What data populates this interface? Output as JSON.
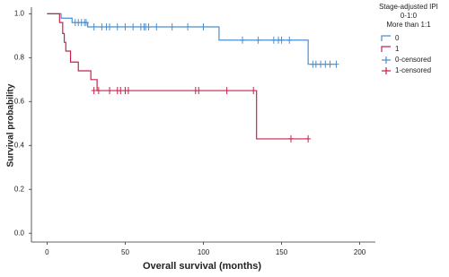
{
  "chart_data": {
    "type": "step",
    "xlabel": "Overall survival (months)",
    "ylabel": "Survival probability",
    "legend_title": [
      "Stage-adjusted IPI",
      "0-1:0",
      "More than 1:1"
    ],
    "legend": "right",
    "xlim": [
      -10,
      210
    ],
    "ylim": [
      -0.04,
      1.03
    ],
    "xticks": [
      0,
      50,
      100,
      150,
      200
    ],
    "yticks": [
      {
        "value": 0,
        "label": "0.0"
      },
      0.2,
      0.4,
      0.6,
      0.8,
      {
        "value": 1,
        "label": "1.0"
      }
    ],
    "series": [
      {
        "name": "0",
        "color": "#4a90cf",
        "style": "step",
        "x": [
          0,
          9,
          16,
          26,
          110,
          167,
          185
        ],
        "values": [
          1.0,
          0.98,
          0.96,
          0.94,
          0.88,
          0.77,
          0.77
        ]
      },
      {
        "name": "1",
        "color": "#c8234b",
        "style": "step",
        "x": [
          0,
          8,
          10,
          11,
          12,
          15,
          20,
          28,
          32,
          134,
          167
        ],
        "values": [
          1.0,
          0.96,
          0.91,
          0.87,
          0.83,
          0.78,
          0.74,
          0.7,
          0.65,
          0.43,
          0.43
        ]
      },
      {
        "name": "0-censored",
        "color": "#4a90cf",
        "style": "censor",
        "x": [
          18,
          20,
          22,
          24,
          25,
          30,
          35,
          38,
          40,
          45,
          50,
          55,
          60,
          62,
          63,
          65,
          70,
          80,
          90,
          100,
          125,
          135,
          145,
          148,
          150,
          155,
          170,
          172,
          175,
          178,
          181,
          185
        ],
        "values": [
          0.96,
          0.96,
          0.96,
          0.96,
          0.96,
          0.94,
          0.94,
          0.94,
          0.94,
          0.94,
          0.94,
          0.94,
          0.94,
          0.94,
          0.94,
          0.94,
          0.94,
          0.94,
          0.94,
          0.94,
          0.88,
          0.88,
          0.88,
          0.88,
          0.88,
          0.88,
          0.77,
          0.77,
          0.77,
          0.77,
          0.77,
          0.77
        ]
      },
      {
        "name": "1-censored",
        "color": "#c8234b",
        "style": "censor",
        "x": [
          30,
          33,
          40,
          45,
          47,
          50,
          52,
          95,
          97,
          115,
          132,
          156,
          167
        ],
        "values": [
          0.65,
          0.65,
          0.65,
          0.65,
          0.65,
          0.65,
          0.65,
          0.65,
          0.65,
          0.65,
          0.65,
          0.43,
          0.43
        ]
      }
    ]
  }
}
